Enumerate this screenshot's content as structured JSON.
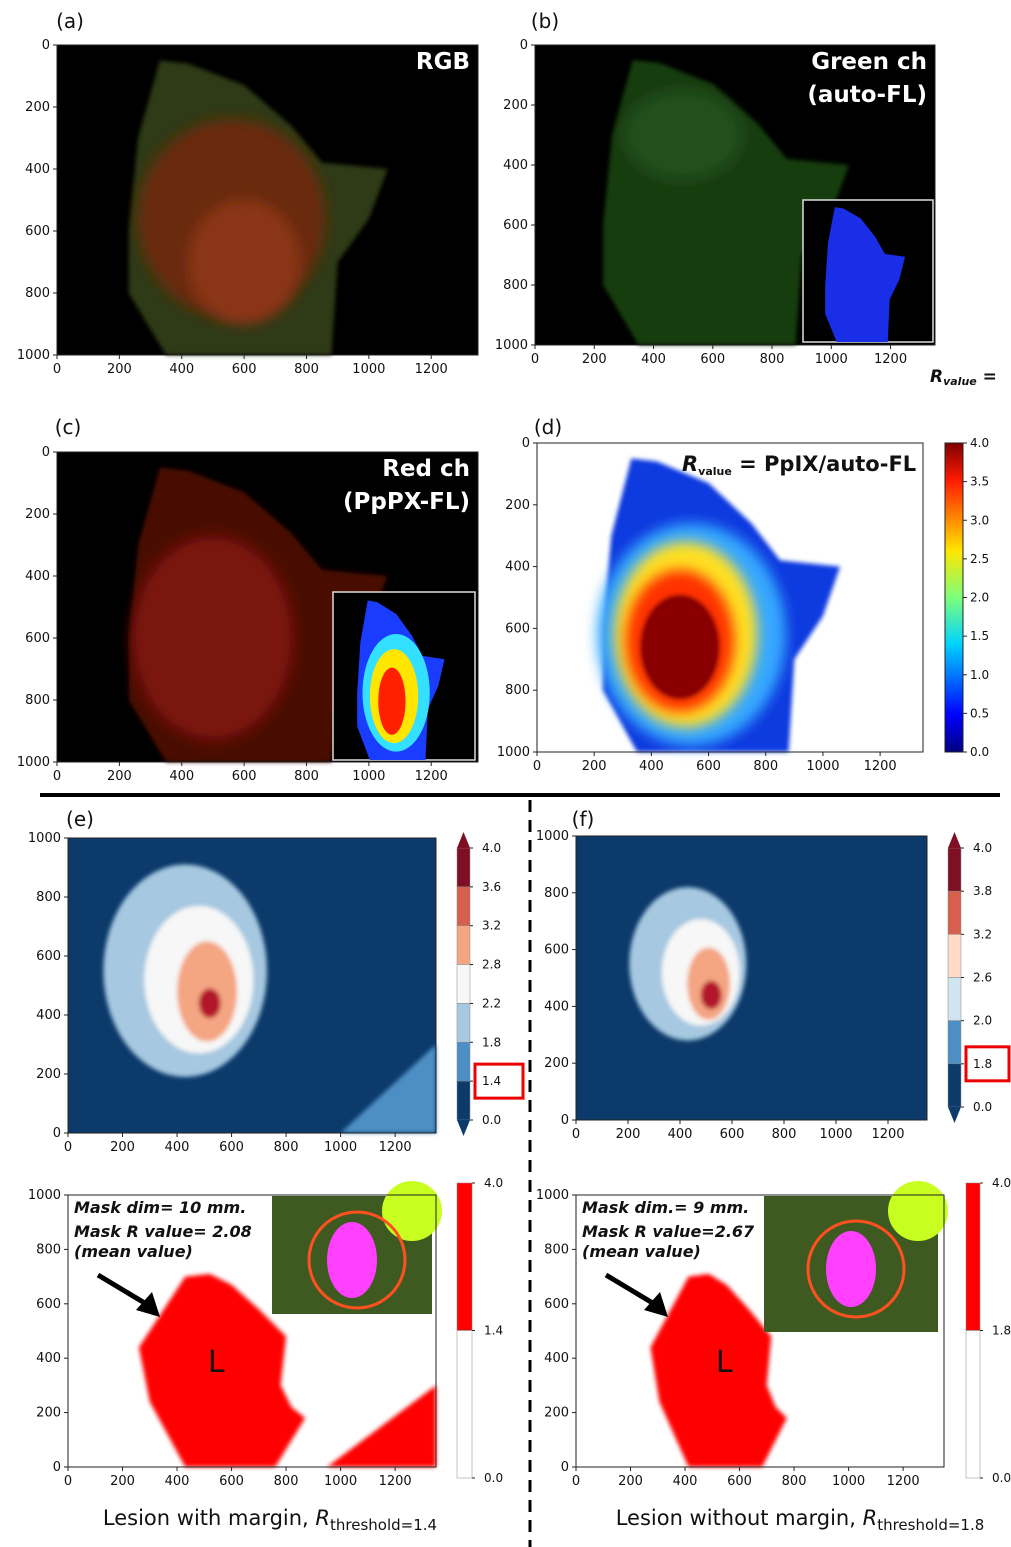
{
  "panels": [
    {
      "label": "(a)",
      "title": [
        "RGB"
      ],
      "xticks": [
        0,
        200,
        400,
        600,
        800,
        1000,
        1200
      ],
      "yticks": [
        0,
        200,
        400,
        600,
        800,
        1000
      ]
    },
    {
      "label": "(b)",
      "title": [
        "Green ch",
        "(auto-FL)"
      ],
      "xticks": [
        0,
        200,
        400,
        600,
        800,
        1000,
        1200
      ],
      "yticks": [
        0,
        200,
        400,
        600,
        800,
        1000
      ],
      "note": [
        "R",
        "value",
        " ="
      ]
    },
    {
      "label": "(c)",
      "title": [
        "Red ch",
        "(PpPX-FL)"
      ],
      "xticks": [
        0,
        200,
        400,
        600,
        800,
        1000,
        1200
      ],
      "yticks": [
        0,
        200,
        400,
        600,
        800,
        1000
      ]
    },
    {
      "label": "(d)",
      "title": [
        "R",
        "value",
        " = PpIX/auto-FL"
      ],
      "xticks": [
        0,
        200,
        400,
        600,
        800,
        1000,
        1200
      ],
      "yticks": [
        0,
        200,
        400,
        600,
        800,
        1000
      ],
      "colorbar": [
        "4.0",
        "3.5",
        "3.0",
        "2.5",
        "2.0",
        "1.5",
        "1.0",
        "0.5",
        "0.0"
      ]
    },
    {
      "label": "(e)",
      "xticks": [
        0,
        200,
        400,
        600,
        800,
        1000,
        1200
      ],
      "yticks": [
        0,
        200,
        400,
        600,
        800,
        1000
      ],
      "colorbar": [
        "4.0",
        "3.6",
        "3.2",
        "2.8",
        "2.2",
        "1.8",
        "1.4",
        "0.0"
      ]
    },
    {
      "label": "(f)",
      "xticks": [
        0,
        200,
        400,
        600,
        800,
        1000,
        1200
      ],
      "yticks": [
        0,
        200,
        400,
        600,
        800,
        1000
      ],
      "colorbar": [
        "4.0",
        "3.8",
        "3.2",
        "2.6",
        "2.0",
        "1.8",
        "0.0"
      ]
    },
    {
      "xticks": [
        0,
        200,
        400,
        600,
        800,
        1000,
        1200
      ],
      "yticks": [
        0,
        200,
        400,
        600,
        800,
        1000
      ],
      "colorbar": [
        "4.0",
        "1.4",
        "0.0"
      ],
      "annotation": [
        "Mask dim= 10 mm.",
        "Mask R value= 2.08",
        "(mean value)"
      ],
      "marker": "L",
      "caption": [
        "Lesion with margin, ",
        "R",
        "threshold=1.4"
      ]
    },
    {
      "xticks": [
        0,
        200,
        400,
        600,
        800,
        1000,
        1200
      ],
      "yticks": [
        0,
        200,
        400,
        600,
        800,
        1000
      ],
      "colorbar": [
        "4.0",
        "1.8",
        "0.0"
      ],
      "annotation": [
        "Mask dim.= 9 mm.",
        "Mask R value=2.67",
        "(mean value)"
      ],
      "marker": "L",
      "caption": [
        "Lesion without margin, ",
        "R",
        "threshold=1.8"
      ]
    }
  ]
}
